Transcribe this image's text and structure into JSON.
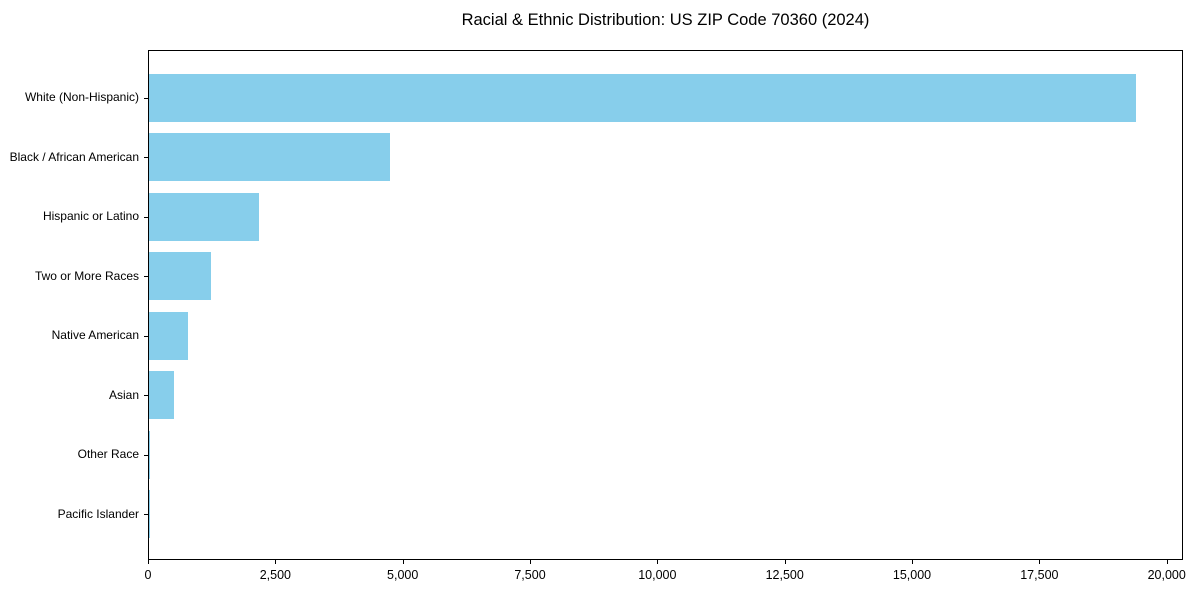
{
  "title": "Racial & Ethnic Distribution: US ZIP Code 70360 (2024)",
  "chart_data": {
    "type": "bar",
    "orientation": "horizontal",
    "title": "Racial & Ethnic Distribution: US ZIP Code 70360 (2024)",
    "xlabel": "",
    "ylabel": "",
    "categories": [
      "White (Non-Hispanic)",
      "Black / African American",
      "Hispanic or Latino",
      "Two or More Races",
      "Native American",
      "Asian",
      "Other Race",
      "Pacific Islander"
    ],
    "values": [
      19380,
      4730,
      2160,
      1220,
      760,
      490,
      15,
      5
    ],
    "xlim": [
      0,
      20320
    ],
    "x_ticks": [
      0,
      2500,
      5000,
      7500,
      10000,
      12500,
      15000,
      17500,
      20000
    ],
    "x_tick_labels": [
      "0",
      "2,500",
      "5,000",
      "7,500",
      "10,000",
      "12,500",
      "15,000",
      "17,500",
      "20,000"
    ],
    "bar_color": "#87CEEB",
    "spine_color": "#000000",
    "text_color": "#000000",
    "grid": false,
    "legend": null
  }
}
